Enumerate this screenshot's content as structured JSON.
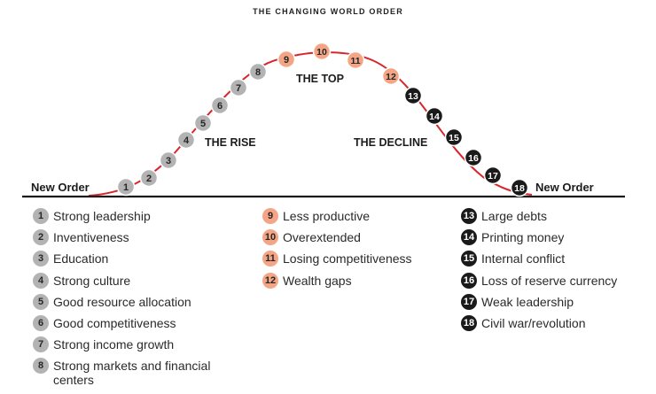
{
  "title": "THE CHANGING WORLD ORDER",
  "labels": {
    "new_order_left": "New Order",
    "new_order_right": "New Order",
    "rise": "THE RISE",
    "top": "THE TOP",
    "decline": "THE DECLINE"
  },
  "colors": {
    "rise": "#b3b3b3",
    "top": "#f4a585",
    "decline": "#1a1a1a",
    "curve": "#d8262c",
    "baseline": "#1a1a1a"
  },
  "stages": [
    {
      "n": "1",
      "label": "Strong leadership",
      "phase": "rise"
    },
    {
      "n": "2",
      "label": "Inventiveness",
      "phase": "rise"
    },
    {
      "n": "3",
      "label": "Education",
      "phase": "rise"
    },
    {
      "n": "4",
      "label": "Strong culture",
      "phase": "rise"
    },
    {
      "n": "5",
      "label": "Good resource allocation",
      "phase": "rise"
    },
    {
      "n": "6",
      "label": "Good competitiveness",
      "phase": "rise"
    },
    {
      "n": "7",
      "label": "Strong income growth",
      "phase": "rise"
    },
    {
      "n": "8",
      "label": "Strong markets and financial centers",
      "phase": "rise"
    },
    {
      "n": "9",
      "label": "Less productive",
      "phase": "top"
    },
    {
      "n": "10",
      "label": "Overextended",
      "phase": "top"
    },
    {
      "n": "11",
      "label": "Losing competitiveness",
      "phase": "top"
    },
    {
      "n": "12",
      "label": "Wealth gaps",
      "phase": "top"
    },
    {
      "n": "13",
      "label": "Large debts",
      "phase": "decline"
    },
    {
      "n": "14",
      "label": "Printing money",
      "phase": "decline"
    },
    {
      "n": "15",
      "label": "Internal conflict",
      "phase": "decline"
    },
    {
      "n": "16",
      "label": "Loss of reserve currency",
      "phase": "decline"
    },
    {
      "n": "17",
      "label": "Weak leadership",
      "phase": "decline"
    },
    {
      "n": "18",
      "label": "Civil war/revolution",
      "phase": "decline"
    }
  ]
}
